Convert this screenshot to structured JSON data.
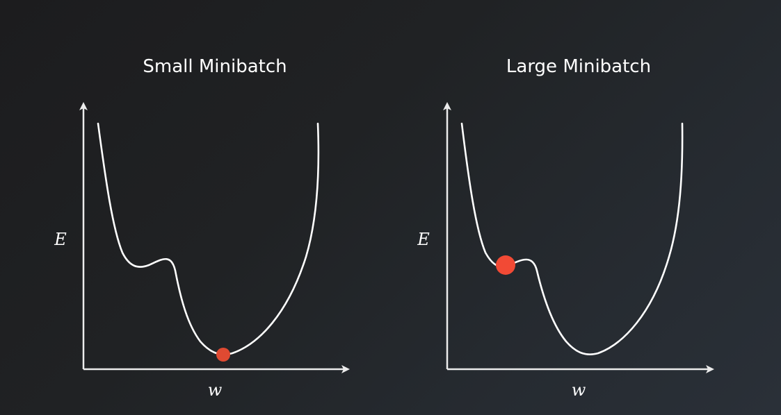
{
  "panels": [
    {
      "title": "Small Minibatch",
      "y_label": "E",
      "x_label": "w",
      "ball": "at the global minimum (wide valley)",
      "ball_color": "#e04a32"
    },
    {
      "title": "Large Minibatch",
      "y_label": "E",
      "x_label": "w",
      "ball": "stuck in the local minimum (shallow dip)",
      "ball_color": "#f24a35"
    }
  ],
  "colors": {
    "background": "#1f2124",
    "curve": "#ffffff",
    "axis": "#ececec",
    "ball": "#e8442f"
  }
}
